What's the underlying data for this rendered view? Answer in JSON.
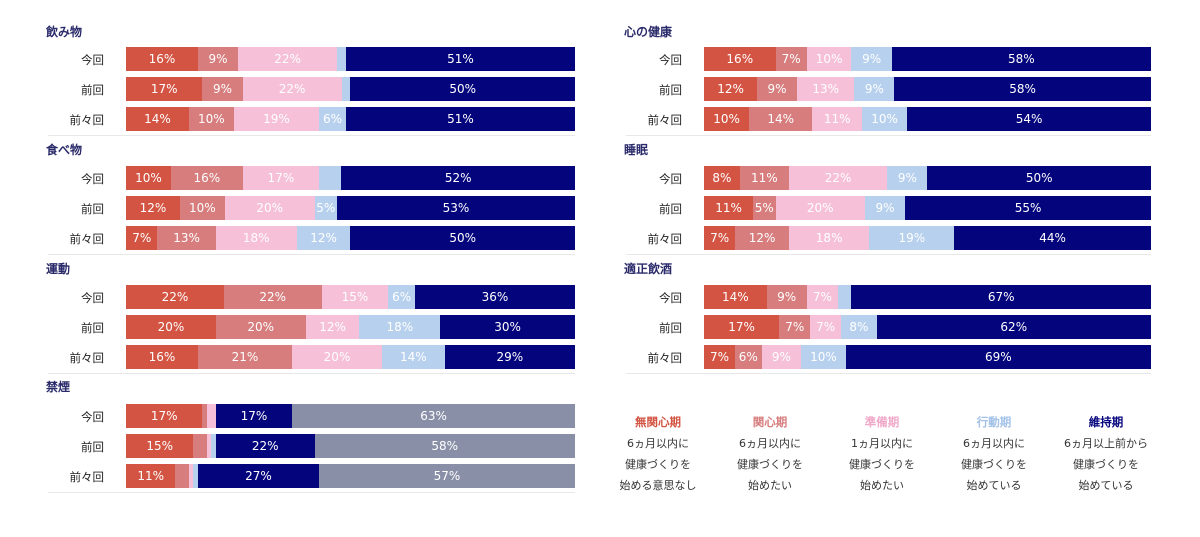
{
  "colors": {
    "無関心期": "#d35443",
    "関心期": "#d77d7d",
    "準備期": "#f6c0d9",
    "行動期": "#b7d0ed",
    "維持期": "#04047d",
    "smoke_rest": "#8a8fa8"
  },
  "chart_data": [
    {
      "type": "bar",
      "orientation": "horizontal",
      "stacked": true,
      "title": "飲み物",
      "categories": [
        "今回",
        "前回",
        "前々回"
      ],
      "series": [
        {
          "name": "無関心期",
          "values": [
            16,
            17,
            14
          ]
        },
        {
          "name": "関心期",
          "values": [
            9,
            9,
            10
          ]
        },
        {
          "name": "準備期",
          "values": [
            22,
            22,
            19
          ]
        },
        {
          "name": "行動期",
          "values": [
            2,
            2,
            6
          ]
        },
        {
          "name": "維持期",
          "values": [
            51,
            50,
            51
          ]
        }
      ],
      "labels": [
        [
          "16%",
          "9%",
          "22%",
          "",
          "51%"
        ],
        [
          "17%",
          "9%",
          "22%",
          "",
          "50%"
        ],
        [
          "14%",
          "10%",
          "19%",
          "6%",
          "51%"
        ]
      ]
    },
    {
      "type": "bar",
      "orientation": "horizontal",
      "stacked": true,
      "title": "食べ物",
      "categories": [
        "今回",
        "前回",
        "前々回"
      ],
      "series": [
        {
          "name": "無関心期",
          "values": [
            10,
            12,
            7
          ]
        },
        {
          "name": "関心期",
          "values": [
            16,
            10,
            13
          ]
        },
        {
          "name": "準備期",
          "values": [
            17,
            20,
            18
          ]
        },
        {
          "name": "行動期",
          "values": [
            5,
            5,
            12
          ]
        },
        {
          "name": "維持期",
          "values": [
            52,
            53,
            50
          ]
        }
      ],
      "labels": [
        [
          "10%",
          "16%",
          "17%",
          "",
          "52%"
        ],
        [
          "12%",
          "10%",
          "20%",
          "5%",
          "53%"
        ],
        [
          "7%",
          "13%",
          "18%",
          "12%",
          "50%"
        ]
      ]
    },
    {
      "type": "bar",
      "orientation": "horizontal",
      "stacked": true,
      "title": "運動",
      "categories": [
        "今回",
        "前回",
        "前々回"
      ],
      "series": [
        {
          "name": "無関心期",
          "values": [
            22,
            20,
            16
          ]
        },
        {
          "name": "関心期",
          "values": [
            22,
            20,
            21
          ]
        },
        {
          "name": "準備期",
          "values": [
            15,
            12,
            20
          ]
        },
        {
          "name": "行動期",
          "values": [
            6,
            18,
            14
          ]
        },
        {
          "name": "維持期",
          "values": [
            36,
            30,
            29
          ]
        }
      ],
      "labels": [
        [
          "22%",
          "22%",
          "15%",
          "6%",
          "36%"
        ],
        [
          "20%",
          "20%",
          "12%",
          "18%",
          "30%"
        ],
        [
          "16%",
          "21%",
          "20%",
          "14%",
          "29%"
        ]
      ]
    },
    {
      "type": "bar",
      "orientation": "horizontal",
      "stacked": true,
      "title": "禁煙",
      "categories": [
        "今回",
        "前回",
        "前々回"
      ],
      "series": [
        {
          "name": "無関心期",
          "values": [
            17,
            15,
            11
          ]
        },
        {
          "name": "関心期",
          "values": [
            1,
            3,
            3
          ]
        },
        {
          "name": "準備期",
          "values": [
            2,
            1,
            1
          ]
        },
        {
          "name": "行動期",
          "values": [
            0,
            1,
            1
          ]
        },
        {
          "name": "維持期",
          "values": [
            17,
            22,
            27
          ]
        },
        {
          "name": "",
          "values": [
            63,
            58,
            57
          ]
        }
      ],
      "labels": [
        [
          "17%",
          "",
          "",
          "",
          "17%",
          "63%"
        ],
        [
          "15%",
          "",
          "",
          "",
          "22%",
          "58%"
        ],
        [
          "11%",
          "",
          "",
          "",
          "27%",
          "57%"
        ]
      ]
    },
    {
      "type": "bar",
      "orientation": "horizontal",
      "stacked": true,
      "title": "心の健康",
      "categories": [
        "今回",
        "前回",
        "前々回"
      ],
      "series": [
        {
          "name": "無関心期",
          "values": [
            16,
            12,
            10
          ]
        },
        {
          "name": "関心期",
          "values": [
            7,
            9,
            14
          ]
        },
        {
          "name": "準備期",
          "values": [
            10,
            13,
            11
          ]
        },
        {
          "name": "行動期",
          "values": [
            9,
            9,
            10
          ]
        },
        {
          "name": "維持期",
          "values": [
            58,
            58,
            54
          ]
        }
      ],
      "labels": [
        [
          "16%",
          "7%",
          "10%",
          "9%",
          "58%"
        ],
        [
          "12%",
          "9%",
          "13%",
          "9%",
          "58%"
        ],
        [
          "10%",
          "14%",
          "11%",
          "10%",
          "54%"
        ]
      ]
    },
    {
      "type": "bar",
      "orientation": "horizontal",
      "stacked": true,
      "title": "睡眠",
      "categories": [
        "今回",
        "前回",
        "前々回"
      ],
      "series": [
        {
          "name": "無関心期",
          "values": [
            8,
            11,
            7
          ]
        },
        {
          "name": "関心期",
          "values": [
            11,
            5,
            12
          ]
        },
        {
          "name": "準備期",
          "values": [
            22,
            20,
            18
          ]
        },
        {
          "name": "行動期",
          "values": [
            9,
            9,
            19
          ]
        },
        {
          "name": "維持期",
          "values": [
            50,
            55,
            44
          ]
        }
      ],
      "labels": [
        [
          "8%",
          "11%",
          "22%",
          "9%",
          "50%"
        ],
        [
          "11%",
          "5%",
          "20%",
          "9%",
          "55%"
        ],
        [
          "7%",
          "12%",
          "18%",
          "19%",
          "44%"
        ]
      ]
    },
    {
      "type": "bar",
      "orientation": "horizontal",
      "stacked": true,
      "title": "適正飲酒",
      "categories": [
        "今回",
        "前回",
        "前々回"
      ],
      "series": [
        {
          "name": "無関心期",
          "values": [
            14,
            17,
            7
          ]
        },
        {
          "name": "関心期",
          "values": [
            9,
            7,
            6
          ]
        },
        {
          "name": "準備期",
          "values": [
            7,
            7,
            9
          ]
        },
        {
          "name": "行動期",
          "values": [
            3,
            8,
            10
          ]
        },
        {
          "name": "維持期",
          "values": [
            67,
            62,
            69
          ]
        }
      ],
      "labels": [
        [
          "14%",
          "9%",
          "7%",
          "",
          "67%"
        ],
        [
          "17%",
          "7%",
          "7%",
          "8%",
          "62%"
        ],
        [
          "7%",
          "6%",
          "9%",
          "10%",
          "69%"
        ]
      ]
    }
  ],
  "legend": [
    {
      "name": "無関心期",
      "lines": [
        "6ヵ月以内に",
        "健康づくりを",
        "始める意思なし"
      ]
    },
    {
      "name": "関心期",
      "lines": [
        "6ヵ月以内に",
        "健康づくりを",
        "始めたい"
      ]
    },
    {
      "name": "準備期",
      "lines": [
        "1ヵ月以内に",
        "健康づくりを",
        "始めたい"
      ]
    },
    {
      "name": "行動期",
      "lines": [
        "6ヵ月以内に",
        "健康づくりを",
        "始めている"
      ]
    },
    {
      "name": "維持期",
      "lines": [
        "6ヵ月以上前から",
        "健康づくりを",
        "始めている"
      ]
    }
  ]
}
